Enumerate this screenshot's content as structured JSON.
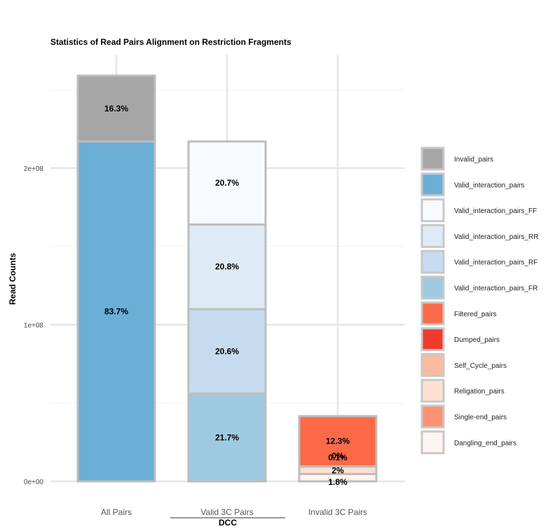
{
  "chart_data": {
    "type": "bar",
    "stacked": true,
    "title": "Statistics of Read Pairs Alignment on Restriction Fragments",
    "xlabel": "DCC",
    "ylabel": "Read Counts",
    "categories": [
      "All Pairs",
      "Valid 3C Pairs",
      "Invalid 3C Pairs"
    ],
    "ylim": [
      0,
      260000000
    ],
    "yticks": [
      0,
      100000000,
      200000000
    ],
    "ytick_labels": [
      "0e+00",
      "1e+08",
      "2e+08"
    ],
    "grid": true,
    "legend_position": "right",
    "bar_border_color": "#bdbdbd",
    "stacks": [
      {
        "category": "All Pairs",
        "segments": [
          {
            "name": "Valid_interaction_pairs",
            "value": 217000000,
            "label": "83.7%"
          },
          {
            "name": "Invalid_pairs",
            "value": 42000000,
            "label": "16.3%"
          }
        ]
      },
      {
        "category": "Valid 3C Pairs",
        "segments": [
          {
            "name": "Valid_interaction_pairs_FR",
            "value": 56000000,
            "label": "21.7%"
          },
          {
            "name": "Valid_interaction_pairs_RF",
            "value": 54000000,
            "label": "20.6%"
          },
          {
            "name": "Valid_interaction_pairs_RR",
            "value": 54000000,
            "label": "20.8%"
          },
          {
            "name": "Valid_interaction_pairs_FF",
            "value": 53000000,
            "label": "20.7%"
          }
        ]
      },
      {
        "category": "Invalid 3C Pairs",
        "segments": [
          {
            "name": "Dangling_end_pairs",
            "value": 4700000,
            "label": "1.8%"
          },
          {
            "name": "Religation_pairs",
            "value": 4800000,
            "label": "2%"
          },
          {
            "name": "Self_Cycle_pairs",
            "value": 100000,
            "label": "0.1%"
          },
          {
            "name": "Dumped_pairs",
            "value": 50000,
            "label": "0%"
          },
          {
            "name": "Filtered_pairs",
            "value": 32000000,
            "label": "12.3%"
          }
        ]
      }
    ],
    "legend": [
      {
        "name": "Invalid_pairs",
        "color": "#a6a6a6"
      },
      {
        "name": "Valid_interaction_pairs",
        "color": "#6baed6"
      },
      {
        "name": "Valid_interaction_pairs_FF",
        "color": "#f7fbff"
      },
      {
        "name": "Valid_interaction_pairs_RR",
        "color": "#deebf7"
      },
      {
        "name": "Valid_interaction_pairs_RF",
        "color": "#c6dbef"
      },
      {
        "name": "Valid_interaction_pairs_FR",
        "color": "#9ecae1"
      },
      {
        "name": "Filtered_pairs",
        "color": "#fc6a48"
      },
      {
        "name": "Dumped_pairs",
        "color": "#ef3b2c"
      },
      {
        "name": "Self_Cycle_pairs",
        "color": "#fcbba1"
      },
      {
        "name": "Religation_pairs",
        "color": "#fde0d2"
      },
      {
        "name": "Single-end_pairs",
        "color": "#fc9272"
      },
      {
        "name": "Dangling_end_pairs",
        "color": "#fff5f0"
      }
    ]
  }
}
